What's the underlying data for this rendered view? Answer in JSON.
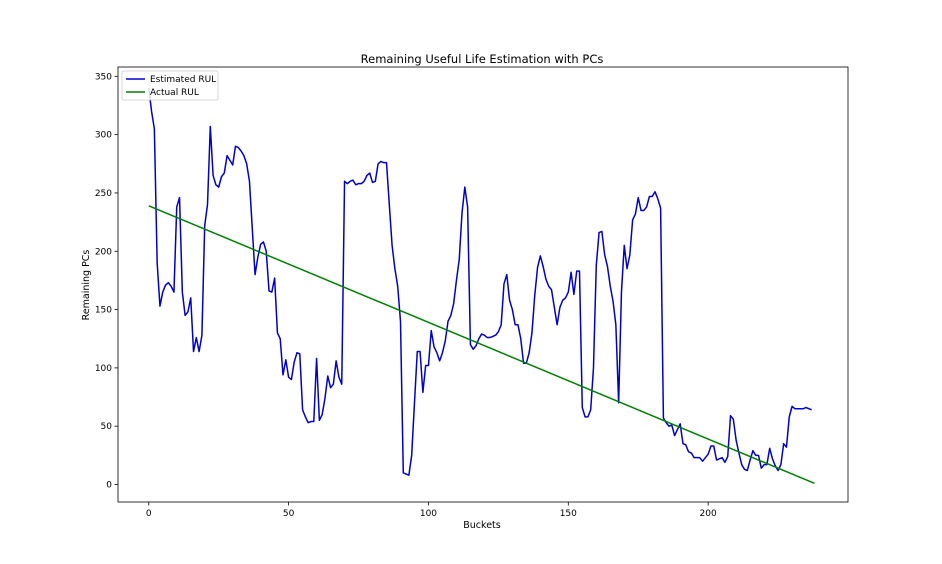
{
  "chart_data": {
    "type": "line",
    "title": "Remaining Useful Life Estimation with PCs",
    "xlabel": "Buckets",
    "ylabel": "Remaining PCs",
    "xlim": [
      -11,
      250
    ],
    "ylim": [
      -15,
      358
    ],
    "xticks": [
      0,
      50,
      100,
      150,
      200
    ],
    "yticks": [
      0,
      50,
      100,
      150,
      200,
      250,
      300,
      350
    ],
    "legend_position": "top-left",
    "grid": false,
    "series": [
      {
        "name": "Estimated RUL",
        "color": "#0000cd",
        "points": [
          [
            0,
            340
          ],
          [
            1,
            320
          ],
          [
            2,
            305
          ],
          [
            3,
            190
          ],
          [
            4,
            153
          ],
          [
            5,
            165
          ],
          [
            6,
            171
          ],
          [
            7,
            173
          ],
          [
            8,
            170
          ],
          [
            9,
            165
          ],
          [
            10,
            238
          ],
          [
            11,
            246
          ],
          [
            12,
            165
          ],
          [
            13,
            145
          ],
          [
            14,
            148
          ],
          [
            15,
            160
          ],
          [
            16,
            114
          ],
          [
            17,
            126
          ],
          [
            18,
            114
          ],
          [
            19,
            128
          ],
          [
            20,
            222
          ],
          [
            21,
            240
          ],
          [
            22,
            307
          ],
          [
            23,
            265
          ],
          [
            24,
            257
          ],
          [
            25,
            255
          ],
          [
            26,
            264
          ],
          [
            27,
            267
          ],
          [
            28,
            282
          ],
          [
            29,
            278
          ],
          [
            30,
            274
          ],
          [
            31,
            290
          ],
          [
            32,
            289
          ],
          [
            33,
            286
          ],
          [
            34,
            282
          ],
          [
            35,
            275
          ],
          [
            36,
            260
          ],
          [
            37,
            220
          ],
          [
            38,
            180
          ],
          [
            39,
            195
          ],
          [
            40,
            206
          ],
          [
            41,
            208
          ],
          [
            42,
            200
          ],
          [
            43,
            166
          ],
          [
            44,
            165
          ],
          [
            45,
            177
          ],
          [
            46,
            130
          ],
          [
            47,
            125
          ],
          [
            48,
            94
          ],
          [
            49,
            107
          ],
          [
            50,
            92
          ],
          [
            51,
            90
          ],
          [
            52,
            105
          ],
          [
            53,
            113
          ],
          [
            54,
            112
          ],
          [
            55,
            64
          ],
          [
            56,
            58
          ],
          [
            57,
            53
          ],
          [
            58,
            54
          ],
          [
            59,
            54
          ],
          [
            60,
            108
          ],
          [
            61,
            55
          ],
          [
            62,
            60
          ],
          [
            63,
            74
          ],
          [
            64,
            93
          ],
          [
            65,
            83
          ],
          [
            66,
            86
          ],
          [
            67,
            106
          ],
          [
            68,
            92
          ],
          [
            69,
            86
          ],
          [
            70,
            260
          ],
          [
            71,
            258
          ],
          [
            72,
            260
          ],
          [
            73,
            261
          ],
          [
            74,
            257
          ],
          [
            75,
            258
          ],
          [
            76,
            258
          ],
          [
            77,
            260
          ],
          [
            78,
            265
          ],
          [
            79,
            267
          ],
          [
            80,
            259
          ],
          [
            81,
            260
          ],
          [
            82,
            275
          ],
          [
            83,
            277
          ],
          [
            84,
            276
          ],
          [
            85,
            276
          ],
          [
            86,
            240
          ],
          [
            87,
            205
          ],
          [
            88,
            185
          ],
          [
            89,
            170
          ],
          [
            90,
            140
          ],
          [
            91,
            10
          ],
          [
            92,
            9
          ],
          [
            93,
            8
          ],
          [
            94,
            25
          ],
          [
            95,
            70
          ],
          [
            96,
            114
          ],
          [
            97,
            114
          ],
          [
            98,
            79
          ],
          [
            99,
            102
          ],
          [
            100,
            102
          ],
          [
            101,
            132
          ],
          [
            102,
            118
          ],
          [
            103,
            113
          ],
          [
            104,
            106
          ],
          [
            105,
            113
          ],
          [
            106,
            123
          ],
          [
            107,
            140
          ],
          [
            108,
            145
          ],
          [
            109,
            155
          ],
          [
            110,
            175
          ],
          [
            111,
            193
          ],
          [
            112,
            233
          ],
          [
            113,
            255
          ],
          [
            114,
            238
          ],
          [
            115,
            120
          ],
          [
            116,
            116
          ],
          [
            117,
            119
          ],
          [
            118,
            125
          ],
          [
            119,
            129
          ],
          [
            120,
            128
          ],
          [
            121,
            126
          ],
          [
            122,
            126
          ],
          [
            123,
            127
          ],
          [
            124,
            128
          ],
          [
            125,
            131
          ],
          [
            126,
            137
          ],
          [
            127,
            172
          ],
          [
            128,
            180
          ],
          [
            129,
            158
          ],
          [
            130,
            150
          ],
          [
            131,
            137
          ],
          [
            132,
            137
          ],
          [
            133,
            125
          ],
          [
            134,
            104
          ],
          [
            135,
            104
          ],
          [
            136,
            113
          ],
          [
            137,
            130
          ],
          [
            138,
            162
          ],
          [
            139,
            186
          ],
          [
            140,
            196
          ],
          [
            141,
            187
          ],
          [
            142,
            176
          ],
          [
            143,
            170
          ],
          [
            144,
            167
          ],
          [
            145,
            152
          ],
          [
            146,
            137
          ],
          [
            147,
            152
          ],
          [
            148,
            158
          ],
          [
            149,
            160
          ],
          [
            150,
            165
          ],
          [
            151,
            182
          ],
          [
            152,
            163
          ],
          [
            153,
            183
          ],
          [
            154,
            183
          ],
          [
            155,
            66
          ],
          [
            156,
            58
          ],
          [
            157,
            58
          ],
          [
            158,
            64
          ],
          [
            159,
            100
          ],
          [
            160,
            188
          ],
          [
            161,
            216
          ],
          [
            162,
            217
          ],
          [
            163,
            197
          ],
          [
            164,
            187
          ],
          [
            165,
            170
          ],
          [
            166,
            157
          ],
          [
            167,
            137
          ],
          [
            168,
            70
          ],
          [
            169,
            165
          ],
          [
            170,
            205
          ],
          [
            171,
            185
          ],
          [
            172,
            197
          ],
          [
            173,
            227
          ],
          [
            174,
            232
          ],
          [
            175,
            246
          ],
          [
            176,
            235
          ],
          [
            177,
            235
          ],
          [
            178,
            238
          ],
          [
            179,
            247
          ],
          [
            180,
            247
          ],
          [
            181,
            251
          ],
          [
            182,
            245
          ],
          [
            183,
            237
          ],
          [
            184,
            57
          ],
          [
            185,
            53
          ],
          [
            186,
            50
          ],
          [
            187,
            51
          ],
          [
            188,
            42
          ],
          [
            189,
            47
          ],
          [
            190,
            52
          ],
          [
            191,
            35
          ],
          [
            192,
            34
          ],
          [
            193,
            28
          ],
          [
            194,
            27
          ],
          [
            195,
            23
          ],
          [
            196,
            23
          ],
          [
            197,
            23
          ],
          [
            198,
            20
          ],
          [
            199,
            23
          ],
          [
            200,
            26
          ],
          [
            201,
            33
          ],
          [
            202,
            33
          ],
          [
            203,
            21
          ],
          [
            204,
            22
          ],
          [
            205,
            23
          ],
          [
            206,
            19
          ],
          [
            207,
            24
          ],
          [
            208,
            59
          ],
          [
            209,
            56
          ],
          [
            210,
            38
          ],
          [
            211,
            27
          ],
          [
            212,
            17
          ],
          [
            213,
            13
          ],
          [
            214,
            12
          ],
          [
            215,
            21
          ],
          [
            216,
            29
          ],
          [
            217,
            25
          ],
          [
            218,
            25
          ],
          [
            219,
            14
          ],
          [
            220,
            17
          ],
          [
            221,
            17
          ],
          [
            222,
            31
          ],
          [
            223,
            22
          ],
          [
            224,
            16
          ],
          [
            225,
            12
          ],
          [
            226,
            17
          ],
          [
            227,
            35
          ],
          [
            228,
            32
          ],
          [
            229,
            58
          ],
          [
            230,
            67
          ],
          [
            231,
            65
          ],
          [
            232,
            65
          ],
          [
            233,
            65
          ],
          [
            234,
            65
          ],
          [
            235,
            66
          ],
          [
            236,
            65
          ],
          [
            237,
            64
          ]
        ]
      },
      {
        "name": "Actual RUL",
        "color": "#008000",
        "points": [
          [
            0,
            239
          ],
          [
            238,
            1
          ]
        ]
      }
    ]
  }
}
